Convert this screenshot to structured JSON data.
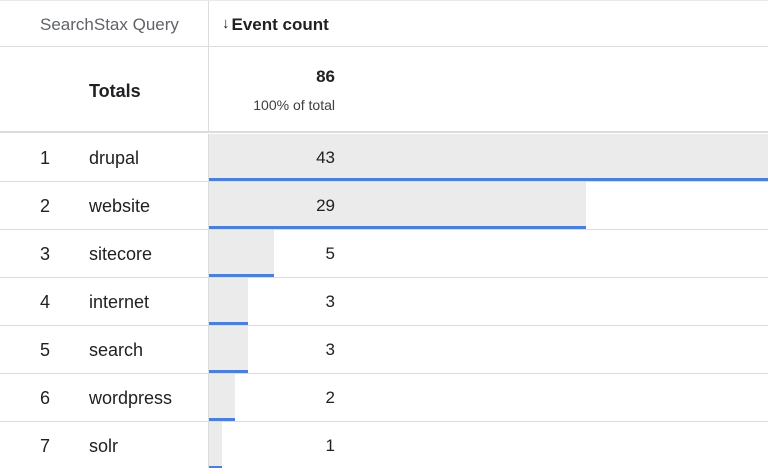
{
  "table": {
    "dimension_header": "SearchStax Query",
    "metric_header": "Event count",
    "sort_icon": "arrow-down-icon",
    "totals": {
      "label": "Totals",
      "value": "86",
      "percent_text": "100% of total"
    },
    "rows": [
      {
        "index": "1",
        "query": "drupal",
        "count": "43",
        "fraction": 1.0
      },
      {
        "index": "2",
        "query": "website",
        "count": "29",
        "fraction": 0.674
      },
      {
        "index": "3",
        "query": "sitecore",
        "count": "5",
        "fraction": 0.116
      },
      {
        "index": "4",
        "query": "internet",
        "count": "3",
        "fraction": 0.07
      },
      {
        "index": "5",
        "query": "search",
        "count": "3",
        "fraction": 0.07
      },
      {
        "index": "6",
        "query": "wordpress",
        "count": "2",
        "fraction": 0.047
      },
      {
        "index": "7",
        "query": "solr",
        "count": "1",
        "fraction": 0.023
      }
    ],
    "colors": {
      "bar_fill": "#ebebeb",
      "bar_accent": "#4a7fdb"
    }
  }
}
